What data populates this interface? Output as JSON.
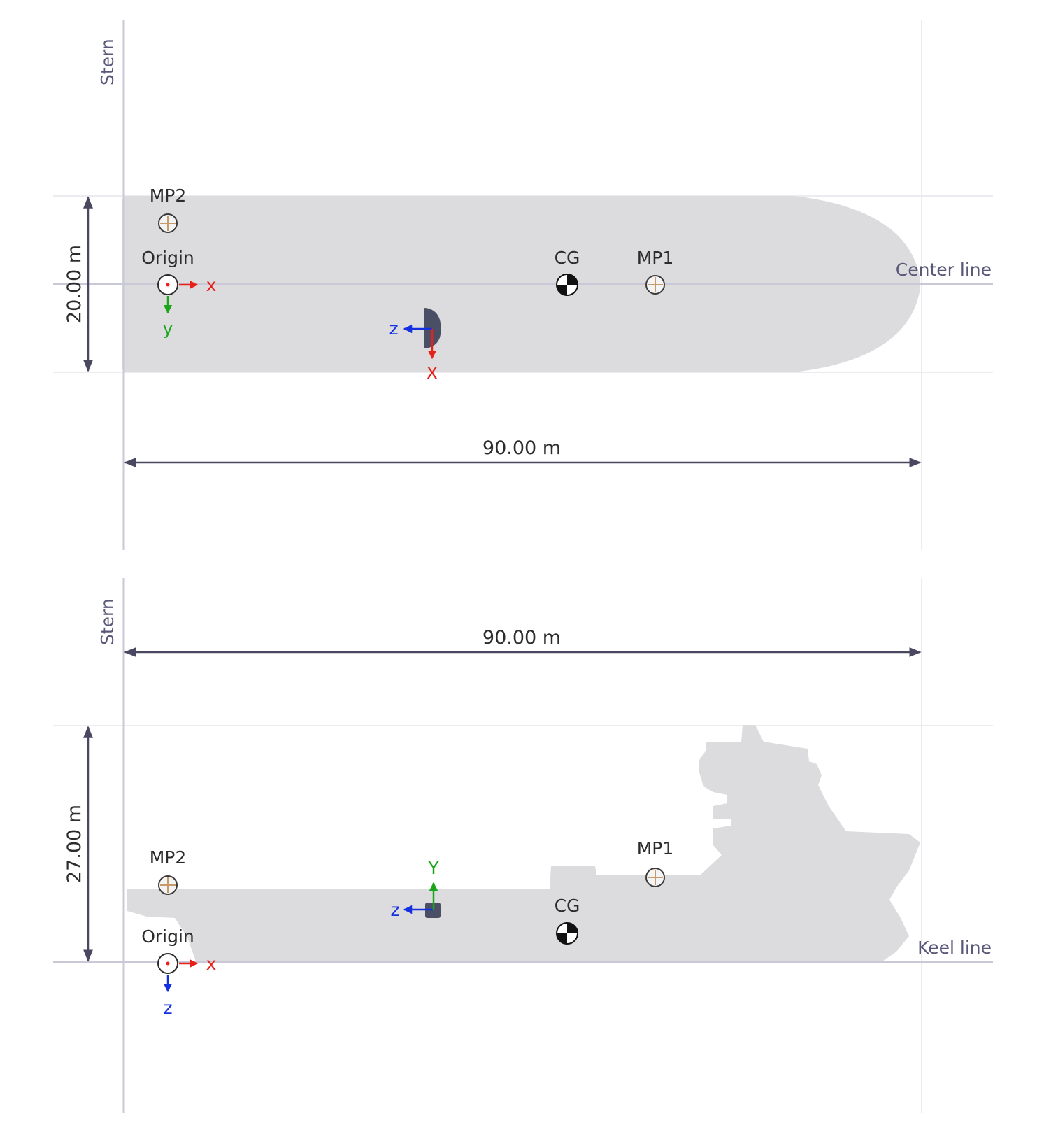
{
  "top_view": {
    "stern_label": "Stern",
    "center_line_label": "Center line",
    "width_dimension": "20.00 m",
    "length_dimension": "90.00 m",
    "origin_label": "Origin",
    "cg_label": "CG",
    "mp1_label": "MP1",
    "mp2_label": "MP2",
    "origin_axis_x": "x",
    "origin_axis_y": "y",
    "thruster_axis_z": "z",
    "thruster_axis_x": "X"
  },
  "side_view": {
    "stern_label": "Stern",
    "keel_line_label": "Keel line",
    "length_dimension": "90.00 m",
    "height_dimension": "27.00 m",
    "origin_label": "Origin",
    "cg_label": "CG",
    "mp1_label": "MP1",
    "mp2_label": "MP2",
    "origin_axis_x": "x",
    "origin_axis_z": "z",
    "thruster_axis_z": "z",
    "thruster_axis_y": "Y"
  },
  "colors": {
    "hull": "#dcdcde",
    "reference_line": "#c9c8d6",
    "guide_line": "#ececf0",
    "dimension": "#4a4860",
    "axis_x": "#e8201a",
    "axis_y": "#1aa51a",
    "axis_z": "#1530e0"
  }
}
